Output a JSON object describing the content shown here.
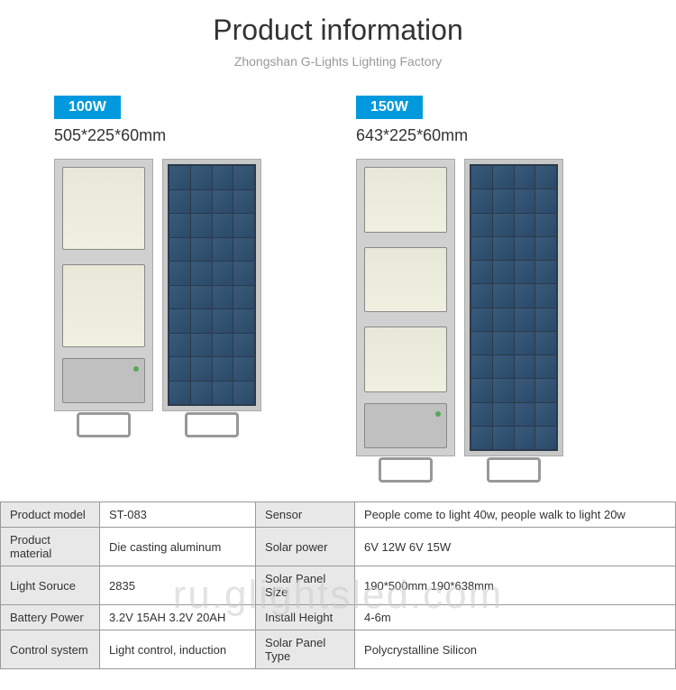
{
  "header": {
    "title": "Product information",
    "subtitle": "Zhongshan G-Lights Lighting Factory"
  },
  "products": [
    {
      "wattage": "100W",
      "dimensions": "505*225*60mm",
      "led_panels": 2,
      "solar_cells_rows": 10
    },
    {
      "wattage": "150W",
      "dimensions": "643*225*60mm",
      "led_panels": 3,
      "solar_cells_rows": 12
    }
  ],
  "specs": {
    "rows": [
      {
        "label1": "Product model",
        "value1": "ST-083",
        "label2": "Sensor",
        "value2": "People come to light 40w, people walk to light 20w"
      },
      {
        "label1": "Product material",
        "value1": "Die casting aluminum",
        "label2": "Solar power",
        "value2": "6V 12W    6V 15W"
      },
      {
        "label1": "Light Soruce",
        "value1": "2835",
        "label2": "Solar Panel Size",
        "value2": "190*500mm   190*638mm"
      },
      {
        "label1": "Battery Power",
        "value1": "3.2V 15AH   3.2V 20AH",
        "label2": "Install Height",
        "value2": "4-6m"
      },
      {
        "label1": "Control system",
        "value1": " Light control, induction",
        "label2": "Solar Panel Type",
        "value2": " Polycrystalline Silicon"
      }
    ]
  },
  "watermark": "ru.glightsled.com",
  "colors": {
    "badge_bg": "#0099dd",
    "table_label_bg": "#e8e8e8"
  }
}
